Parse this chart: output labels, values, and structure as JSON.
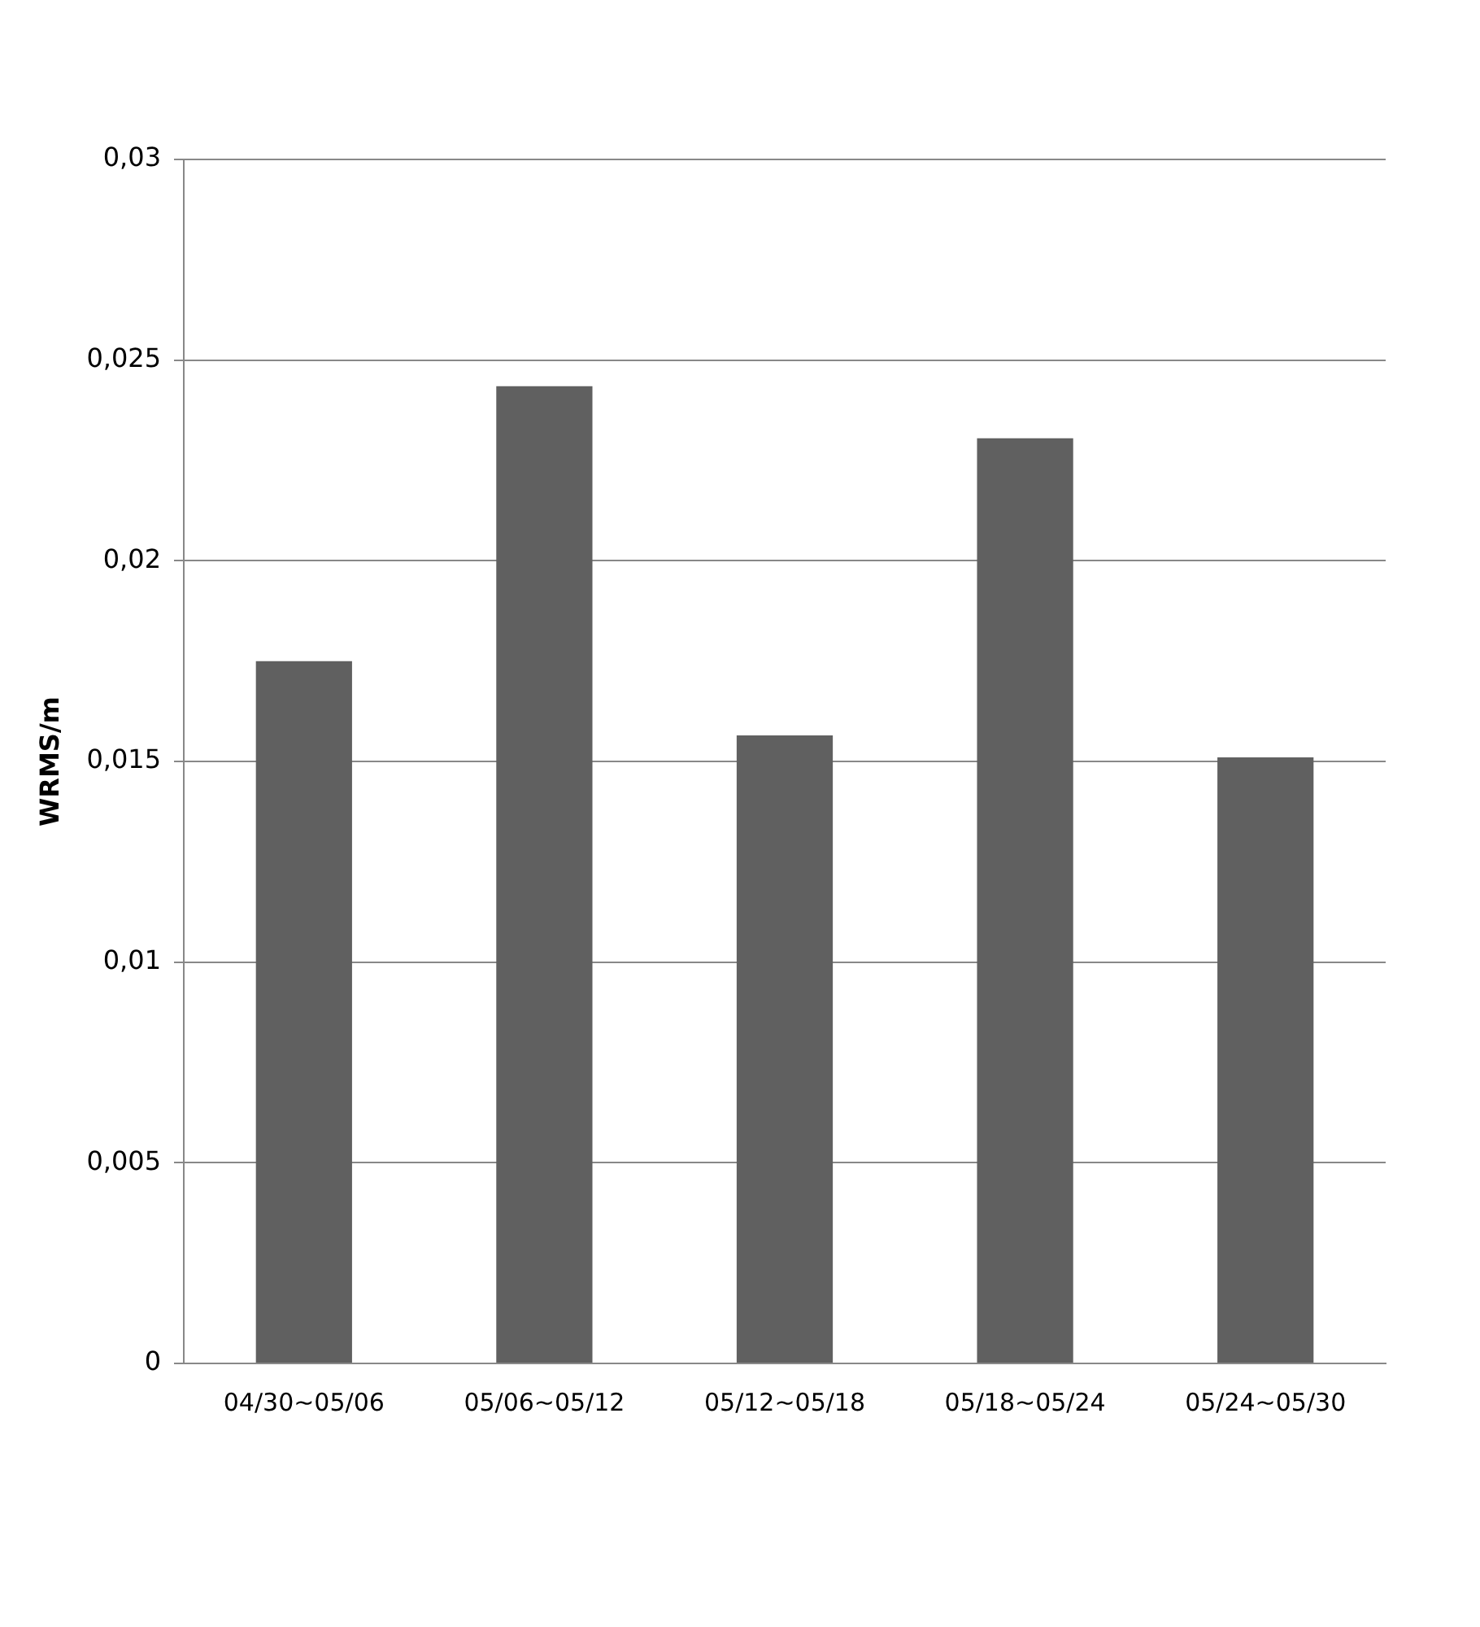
{
  "chart_data": {
    "type": "bar",
    "ylabel": "WRMS/m",
    "categories": [
      "04/30~05/06",
      "05/06~05/12",
      "05/12~05/18",
      "05/18~05/24",
      "05/24~05/30"
    ],
    "values": [
      0.0175,
      0.02435,
      0.01565,
      0.02305,
      0.0151
    ],
    "color": "#606060",
    "ylim": [
      0,
      0.03
    ],
    "yticks": [
      {
        "value": 0,
        "label": "0"
      },
      {
        "value": 0.005,
        "label": "0,005"
      },
      {
        "value": 0.01,
        "label": "0,01"
      },
      {
        "value": 0.015,
        "label": "0,015"
      },
      {
        "value": 0.02,
        "label": "0,02"
      },
      {
        "value": 0.025,
        "label": "0,025"
      },
      {
        "value": 0.03,
        "label": "0,03"
      }
    ],
    "grid": "y",
    "legend": false
  }
}
